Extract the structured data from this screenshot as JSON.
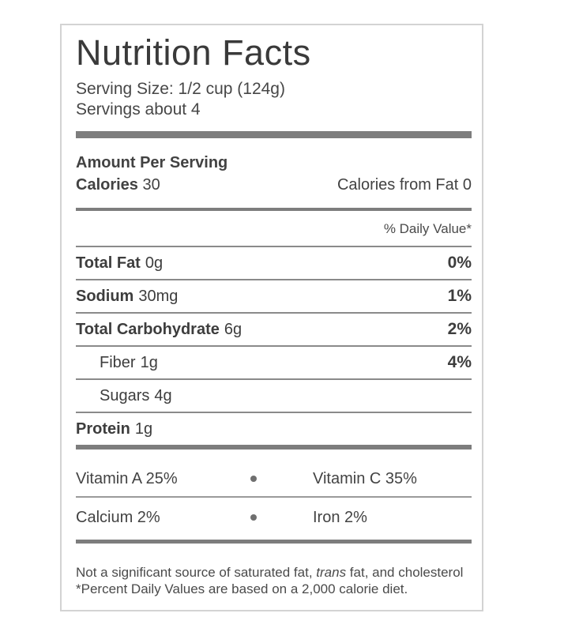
{
  "label": {
    "title": "Nutrition Facts",
    "serving_size": "Serving Size: 1/2 cup (124g)",
    "servings": "Servings about 4",
    "amount_per_serving": "Amount Per Serving",
    "calories": {
      "label": "Calories",
      "value": "30",
      "from_fat": "Calories from Fat 0"
    },
    "daily_value_header": "% Daily Value*",
    "rows": [
      {
        "name": "Total Fat",
        "amount": "0g",
        "dv": "0%"
      },
      {
        "name": "Sodium",
        "amount": "30mg",
        "dv": "1%"
      },
      {
        "name": "Total Carbohydrate",
        "amount": "6g",
        "dv": "2%"
      },
      {
        "name": "Fiber",
        "amount": "1g",
        "dv": "4%"
      },
      {
        "name": "Sugars",
        "amount": "4g",
        "dv": ""
      },
      {
        "name": "Protein",
        "amount": "1g",
        "dv": ""
      }
    ],
    "micronutrients": [
      {
        "left": "Vitamin A 25%",
        "right": "Vitamin C 35%"
      },
      {
        "left": "Calcium 2%",
        "right": "Iron 2%"
      }
    ],
    "footnote": {
      "line1_pre": "Not a significant source of saturated fat, ",
      "line1_italic": "trans",
      "line1_post": " fat, and cholesterol",
      "line2": "*Percent Daily Values are based on a 2,000 calorie diet."
    },
    "colors": {
      "text": "#3d3d3d",
      "bar": "#7d7d7d",
      "rule": "#8a8a8a",
      "border": "#d3d3d3"
    }
  }
}
